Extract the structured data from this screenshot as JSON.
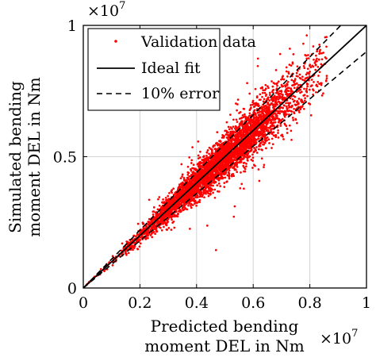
{
  "chart_data": {
    "type": "scatter",
    "title": "",
    "xlabel": [
      "Predicted bending",
      "moment DEL in Nm"
    ],
    "ylabel": [
      "Simulated bending",
      "moment DEL in Nm"
    ],
    "x_multiplier": {
      "base": "×10",
      "exponent": "7"
    },
    "y_multiplier": {
      "base": "×10",
      "exponent": "7"
    },
    "xlim": [
      0,
      1.0
    ],
    "ylim": [
      0,
      1.0
    ],
    "x_ticks": [
      {
        "value": 0,
        "label": "0"
      },
      {
        "value": 0.2,
        "label": "0.2"
      },
      {
        "value": 0.4,
        "label": "0.4"
      },
      {
        "value": 0.6,
        "label": "0.6"
      },
      {
        "value": 0.8,
        "label": "0.8"
      },
      {
        "value": 1.0,
        "label": "1"
      }
    ],
    "y_ticks": [
      {
        "value": 0,
        "label": "0"
      },
      {
        "value": 0.5,
        "label": "0.5"
      },
      {
        "value": 1.0,
        "label": "1"
      }
    ],
    "grid": true,
    "legend_position": "top-left",
    "series": [
      {
        "name": "Validation data",
        "kind": "scatter",
        "color": "#ff0000",
        "x_range": [
          0.01,
          0.86
        ],
        "relative_spread": 0.08,
        "approx_points": 4500
      },
      {
        "name": "Ideal fit",
        "kind": "line",
        "color": "#000000",
        "x": [
          0,
          1.0
        ],
        "y": [
          0,
          1.0
        ]
      },
      {
        "name": "10% error",
        "kind": "dashed-line",
        "color": "#000000",
        "lines": [
          {
            "x": [
              0,
              1.0
            ],
            "y": [
              0,
              1.1
            ]
          },
          {
            "x": [
              0,
              1.0
            ],
            "y": [
              0,
              0.9
            ]
          }
        ]
      }
    ]
  }
}
